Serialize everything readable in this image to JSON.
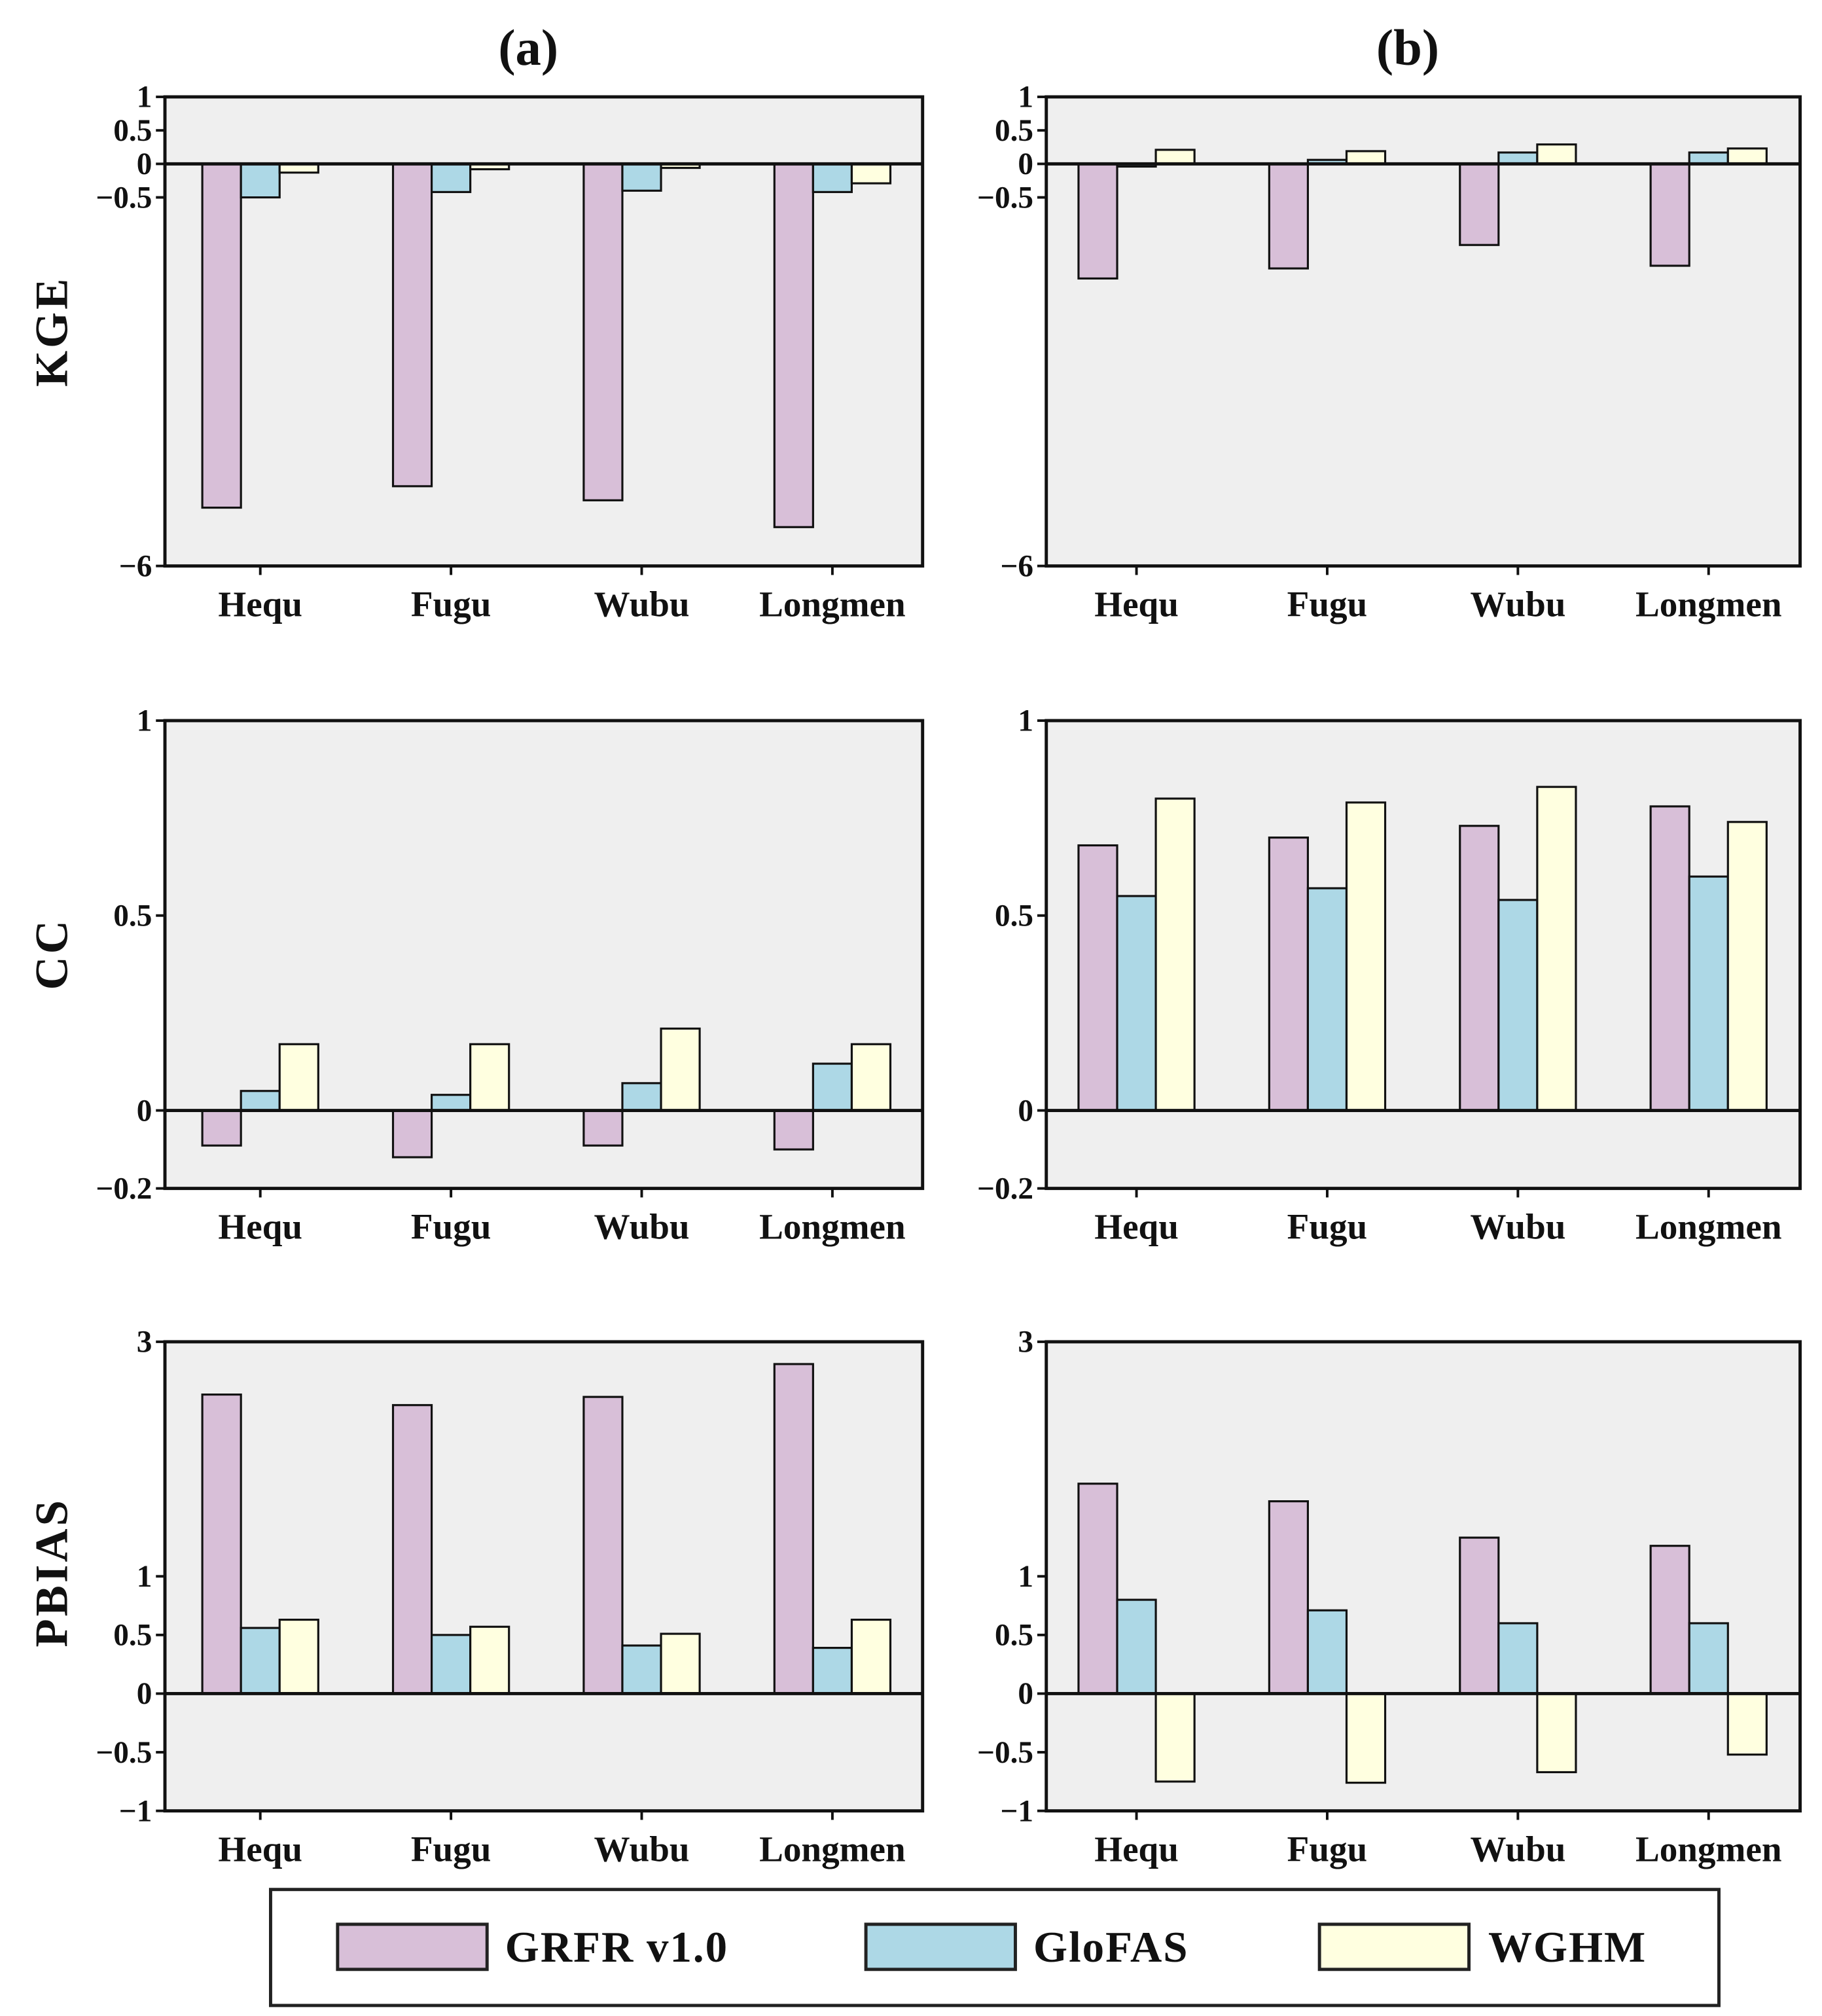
{
  "chart_data": {
    "type": "bar",
    "panel_titles": [
      "(a)",
      "(b)"
    ],
    "categories": [
      "Hequ",
      "Fugu",
      "Wubu",
      "Longmen"
    ],
    "legend": {
      "placement": "bottom",
      "entries": [
        {
          "name": "GRFR v1.0",
          "color": "#d8bfd8"
        },
        {
          "name": "GloFAS",
          "color": "#add8e6"
        },
        {
          "name": "WGHM",
          "color": "#ffffe0"
        }
      ]
    },
    "background": "#efefef",
    "rows": [
      {
        "ylabel": "KGE",
        "ylim": [
          -6,
          1
        ],
        "yticks": [
          1,
          0.5,
          0,
          -0.5,
          -6
        ],
        "ytick_labels": [
          "1",
          "0.5",
          "0",
          "−0.5",
          "−6"
        ],
        "panels": [
          {
            "series": [
              {
                "name": "GRFR v1.0",
                "values": [
                  -5.13,
                  -4.81,
                  -5.02,
                  -5.42
                ]
              },
              {
                "name": "GloFAS",
                "values": [
                  -0.5,
                  -0.42,
                  -0.4,
                  -0.42
                ]
              },
              {
                "name": "WGHM",
                "values": [
                  -0.13,
                  -0.08,
                  -0.06,
                  -0.29
                ]
              }
            ]
          },
          {
            "series": [
              {
                "name": "GRFR v1.0",
                "values": [
                  -1.71,
                  -1.56,
                  -1.21,
                  -1.52
                ]
              },
              {
                "name": "GloFAS",
                "values": [
                  -0.04,
                  0.06,
                  0.17,
                  0.17
                ]
              },
              {
                "name": "WGHM",
                "values": [
                  0.21,
                  0.19,
                  0.29,
                  0.23
                ]
              }
            ]
          }
        ]
      },
      {
        "ylabel": "CC",
        "ylim": [
          -0.2,
          1
        ],
        "yticks": [
          1,
          0.5,
          0,
          -0.2
        ],
        "ytick_labels": [
          "1",
          "0.5",
          "0",
          "−0.2"
        ],
        "panels": [
          {
            "series": [
              {
                "name": "GRFR v1.0",
                "values": [
                  -0.09,
                  -0.12,
                  -0.09,
                  -0.1
                ]
              },
              {
                "name": "GloFAS",
                "values": [
                  0.05,
                  0.04,
                  0.07,
                  0.12
                ]
              },
              {
                "name": "WGHM",
                "values": [
                  0.17,
                  0.17,
                  0.21,
                  0.17
                ]
              }
            ]
          },
          {
            "series": [
              {
                "name": "GRFR v1.0",
                "values": [
                  0.68,
                  0.7,
                  0.73,
                  0.78
                ]
              },
              {
                "name": "GloFAS",
                "values": [
                  0.55,
                  0.57,
                  0.54,
                  0.6
                ]
              },
              {
                "name": "WGHM",
                "values": [
                  0.8,
                  0.79,
                  0.83,
                  0.74
                ]
              }
            ]
          }
        ]
      },
      {
        "ylabel": "PBIAS",
        "ylim": [
          -1,
          3
        ],
        "yticks": [
          3,
          1,
          0.5,
          0,
          -0.5,
          -1
        ],
        "ytick_labels": [
          "3",
          "1",
          "0.5",
          "0",
          "−0.5",
          "−1"
        ],
        "panels": [
          {
            "series": [
              {
                "name": "GRFR v1.0",
                "values": [
                  2.55,
                  2.46,
                  2.53,
                  2.81
                ]
              },
              {
                "name": "GloFAS",
                "values": [
                  0.56,
                  0.5,
                  0.41,
                  0.39
                ]
              },
              {
                "name": "WGHM",
                "values": [
                  0.63,
                  0.57,
                  0.51,
                  0.63
                ]
              }
            ]
          },
          {
            "series": [
              {
                "name": "GRFR v1.0",
                "values": [
                  1.79,
                  1.64,
                  1.33,
                  1.26
                ]
              },
              {
                "name": "GloFAS",
                "values": [
                  0.8,
                  0.71,
                  0.6,
                  0.6
                ]
              },
              {
                "name": "WGHM",
                "values": [
                  -0.75,
                  -0.76,
                  -0.67,
                  -0.52
                ]
              }
            ]
          }
        ]
      }
    ]
  }
}
